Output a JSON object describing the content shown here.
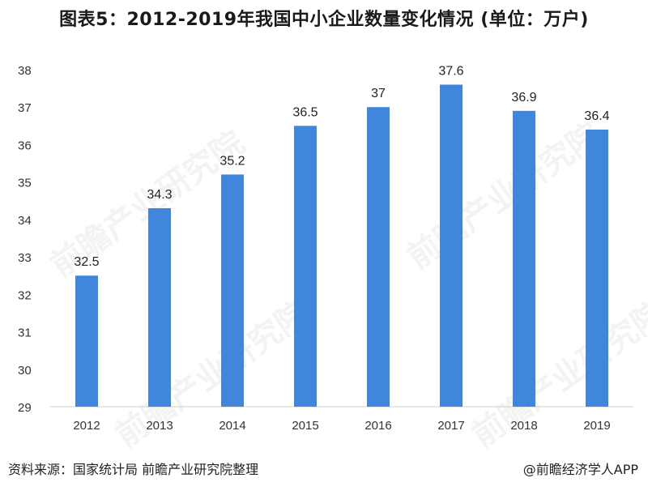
{
  "title": "图表5：2012-2019年我国中小企业数量变化情况 (单位：万户)",
  "footer": {
    "source": "资料来源：国家统计局   前瞻产业研究院整理",
    "brand": "@前瞻经济学人APP"
  },
  "watermark": "前瞻产业研究院",
  "chart_data": {
    "type": "bar",
    "title": "图表5：2012-2019年我国中小企业数量变化情况 (单位：万户)",
    "categories": [
      "2012",
      "2013",
      "2014",
      "2015",
      "2016",
      "2017",
      "2018",
      "2019"
    ],
    "values": [
      32.5,
      34.3,
      35.2,
      36.5,
      37,
      37.6,
      36.9,
      36.4
    ],
    "value_labels": [
      "32.5",
      "34.3",
      "35.2",
      "36.5",
      "37",
      "37.6",
      "36.9",
      "36.4"
    ],
    "ylim": [
      29,
      38
    ],
    "yticks": [
      29,
      30,
      31,
      32,
      33,
      34,
      35,
      36,
      37,
      38
    ],
    "xlabel": "",
    "ylabel": "",
    "grid": false,
    "bar_color": "#3f86dc"
  }
}
